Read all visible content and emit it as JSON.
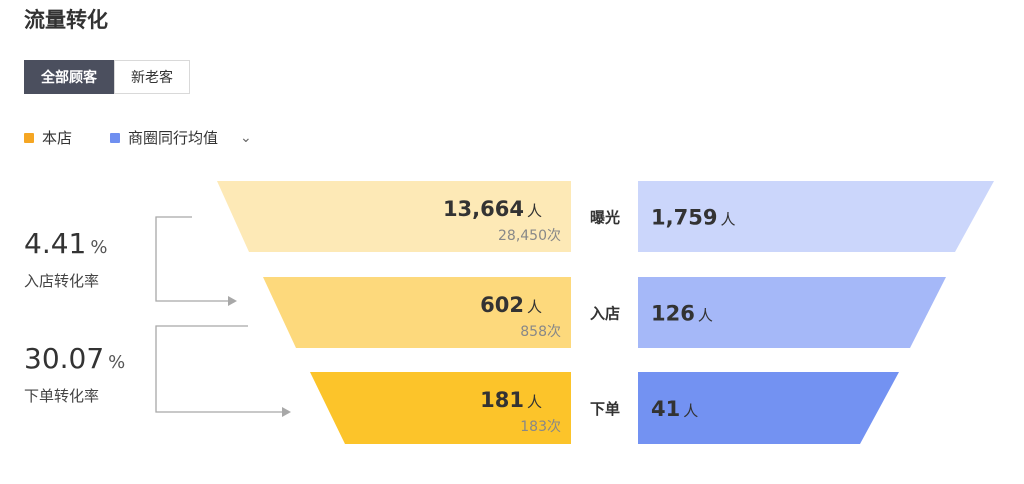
{
  "title": "流量转化",
  "tabs": [
    {
      "label": "全部顾客",
      "active": true
    },
    {
      "label": "新老客",
      "active": false
    }
  ],
  "legend": {
    "items": [
      {
        "label": "本店",
        "color": "#f5a623"
      },
      {
        "label": "商圈同行均值",
        "color": "#6f8ff0"
      }
    ],
    "dropdown_icon": "chevron-down-icon"
  },
  "rates": [
    {
      "value": "4.41",
      "unit": "%",
      "label": "入店转化率"
    },
    {
      "value": "30.07",
      "unit": "%",
      "label": "下单转化率"
    }
  ],
  "chart_data": {
    "type": "bar",
    "categories": [
      "曝光",
      "入店",
      "下单"
    ],
    "series": [
      {
        "name": "本店",
        "values": [
          13664,
          602,
          181
        ],
        "labels": [
          "13,664",
          "602",
          "181"
        ],
        "unit": "人",
        "sub_values": [
          28450,
          858,
          183
        ],
        "sub_labels": [
          "28,450",
          "858",
          "183"
        ],
        "sub_unit": "次",
        "colors": [
          "#fde9b6",
          "#fdd97c",
          "#fcc42a"
        ]
      },
      {
        "name": "商圈同行均值",
        "values": [
          1759,
          126,
          41
        ],
        "labels": [
          "1,759",
          "126",
          "41"
        ],
        "unit": "人",
        "colors": [
          "#cbd6fb",
          "#a5b8f8",
          "#7392f2"
        ]
      }
    ]
  }
}
